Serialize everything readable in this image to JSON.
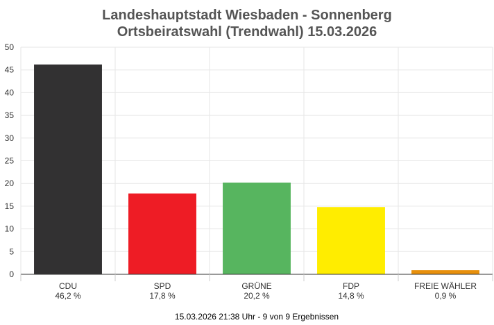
{
  "chart_data": {
    "type": "bar",
    "title": "Landeshauptstadt Wiesbaden - Sonnenberg",
    "subtitle": "Ortsbeiratswahl (Trendwahl) 15.03.2026",
    "categories": [
      "CDU",
      "SPD",
      "GRÜNE",
      "FDP",
      "FREIE WÄHLER"
    ],
    "values": [
      46.2,
      17.8,
      20.2,
      14.8,
      0.9
    ],
    "value_labels": [
      "46,2 %",
      "17,8 %",
      "20,2 %",
      "14,8 %",
      "0,9 %"
    ],
    "colors": [
      "#323132",
      "#ee1c25",
      "#57b55f",
      "#ffed00",
      "#e8900c"
    ],
    "ylim": [
      0,
      50
    ],
    "yticks": [
      0,
      5,
      10,
      15,
      20,
      25,
      30,
      35,
      40,
      45,
      50
    ],
    "grid": true,
    "xlabel": "",
    "ylabel": "",
    "footer": "15.03.2026 21:38 Uhr - 9 von 9 Ergebnissen"
  }
}
